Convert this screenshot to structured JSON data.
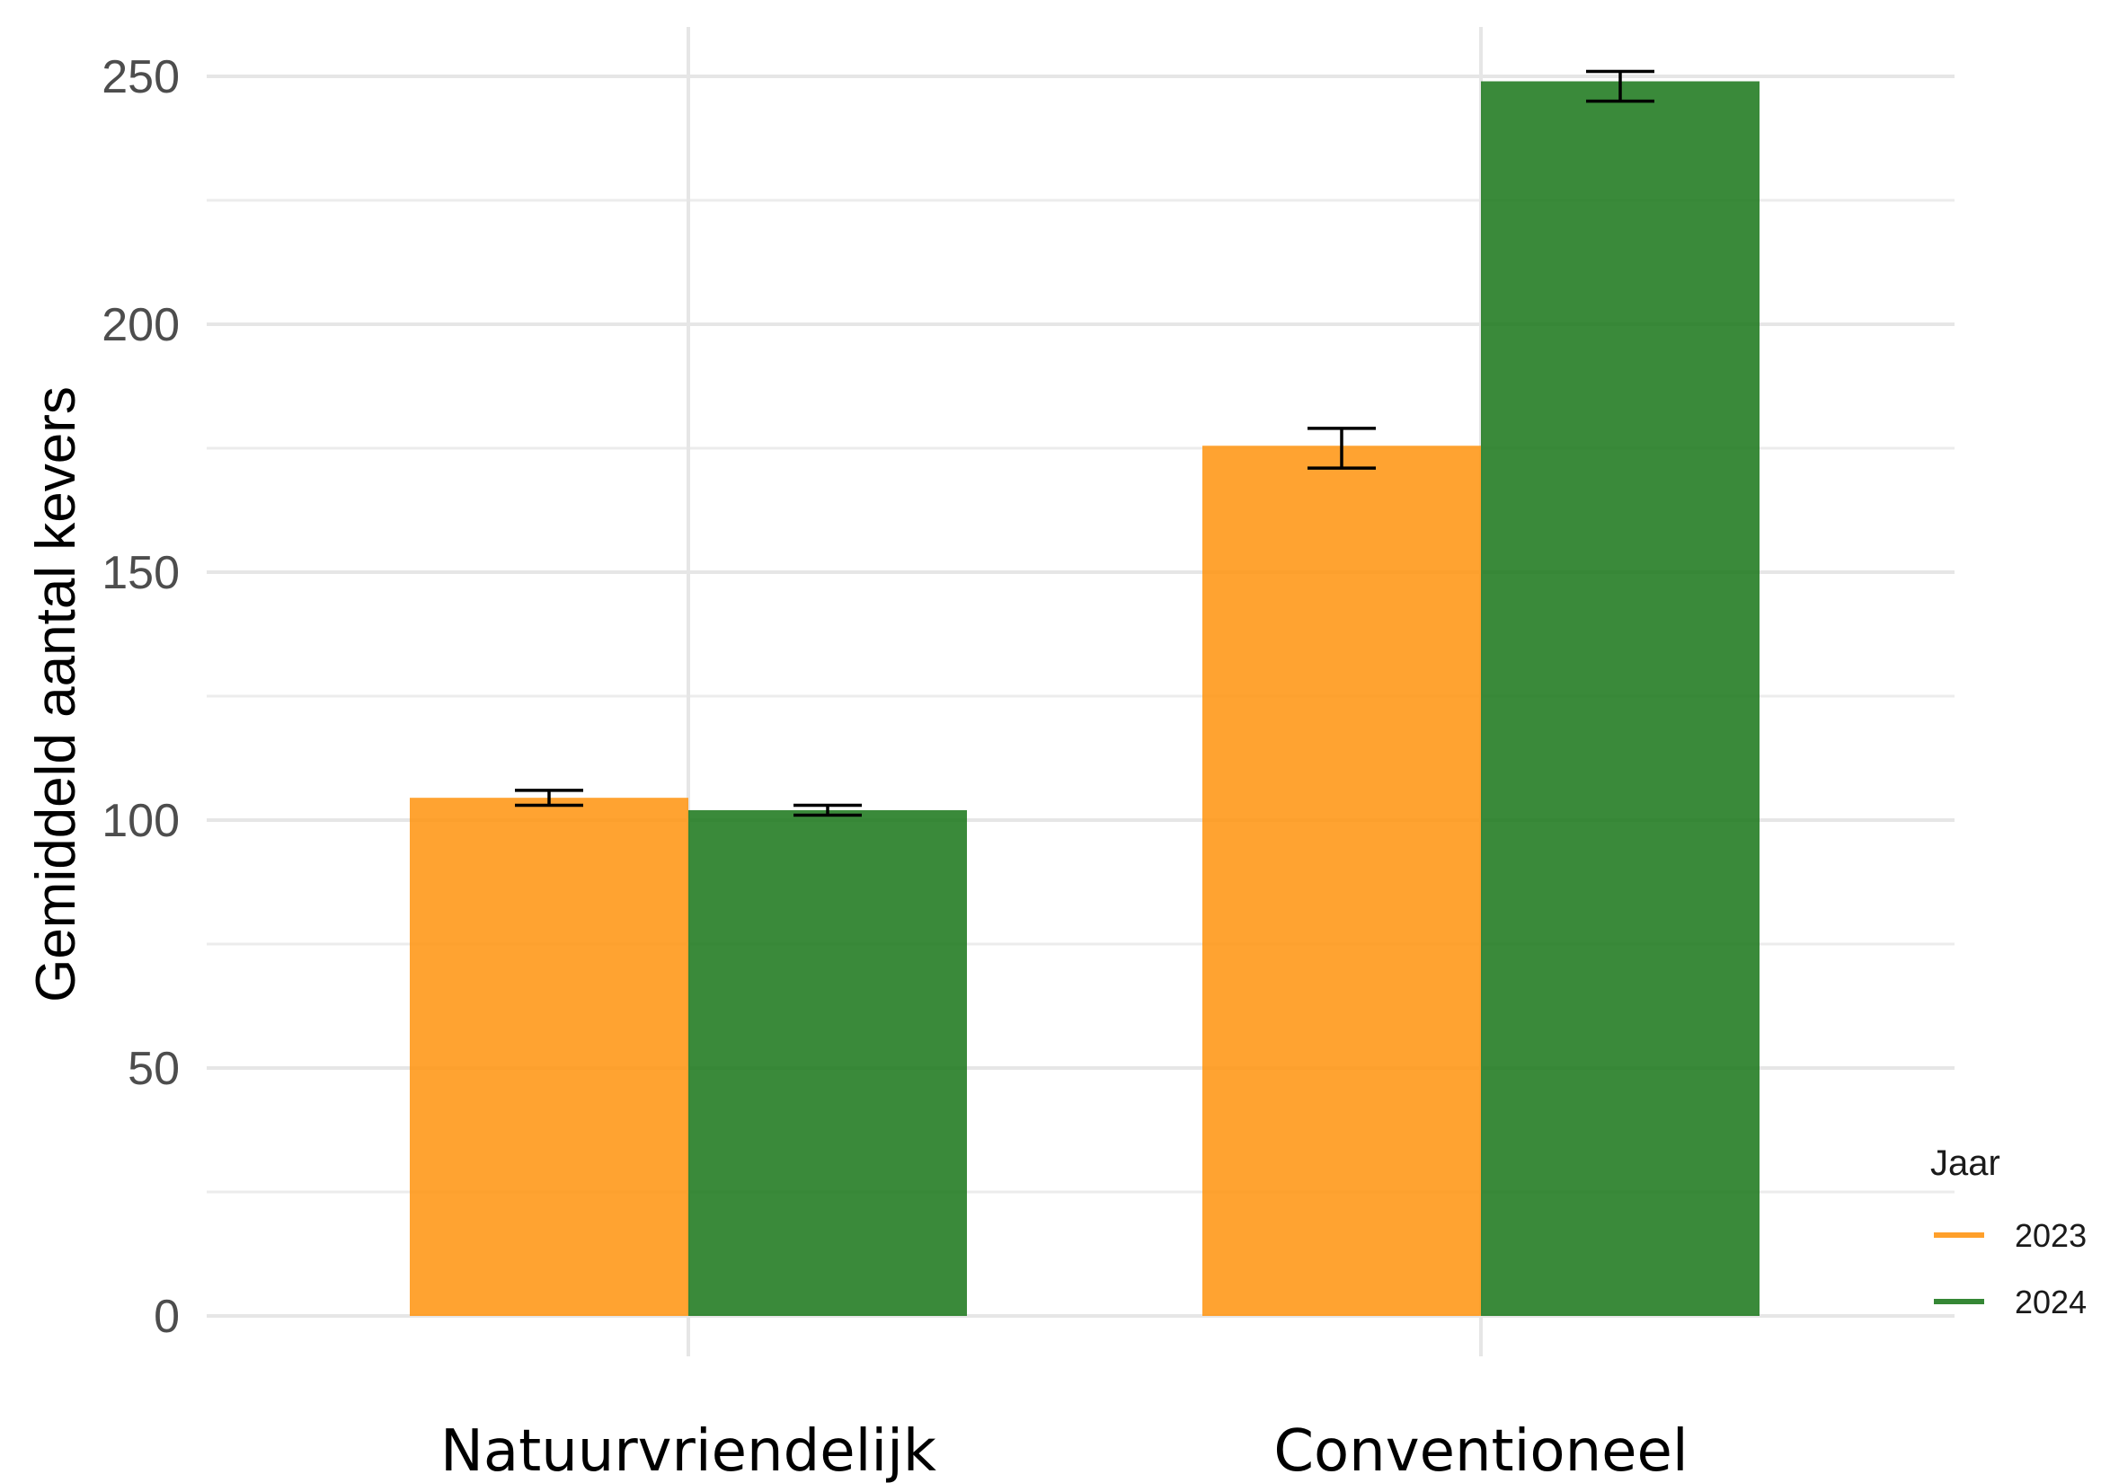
{
  "chart_data": {
    "type": "bar",
    "categories": [
      "Natuurvriendelijk",
      "Conventioneel"
    ],
    "series": [
      {
        "name": "2023",
        "color": "#ff9614",
        "values": [
          104.5,
          175.5
        ],
        "error": [
          [
            103,
            106
          ],
          [
            171,
            179
          ]
        ]
      },
      {
        "name": "2024",
        "color": "#1f7a1f",
        "values": [
          102,
          249
        ],
        "error": [
          [
            101,
            103
          ],
          [
            245,
            251
          ]
        ]
      }
    ],
    "title": "",
    "xlabel": "",
    "ylabel": "Gemiddeld aantal kevers",
    "ylim": [
      0,
      260
    ],
    "yticks": [
      0,
      50,
      100,
      150,
      200,
      250
    ],
    "grid": true,
    "legend": {
      "title": "Jaar",
      "position": "right-bottom"
    }
  }
}
